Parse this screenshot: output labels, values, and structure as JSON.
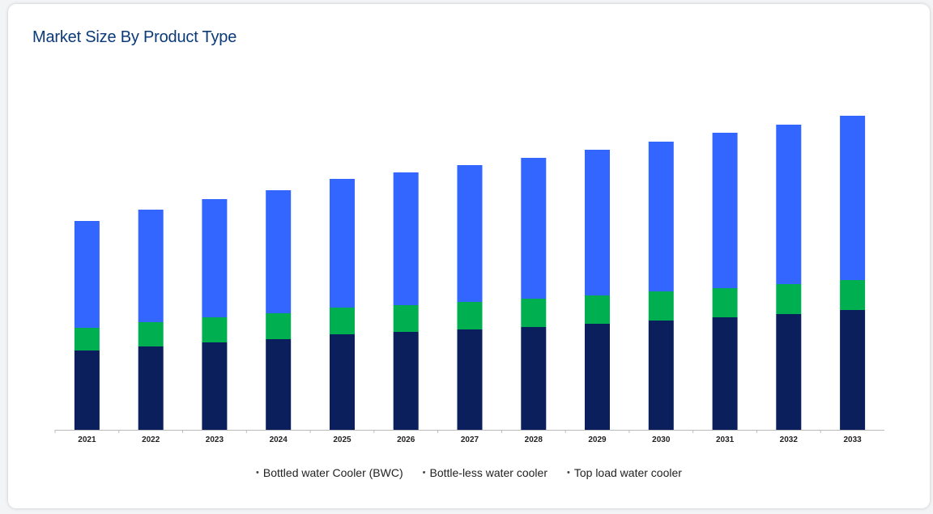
{
  "title": "Market Size By Product Type",
  "chart_data": {
    "type": "bar",
    "stacked": true,
    "categories": [
      "2021",
      "2022",
      "2023",
      "2024",
      "2025",
      "2026",
      "2027",
      "2028",
      "2029",
      "2030",
      "2031",
      "2032",
      "2033"
    ],
    "series": [
      {
        "name": "Bottled water Cooler (BWC)",
        "color": "#3366ff",
        "values": [
          132,
          139,
          146,
          152,
          159,
          164,
          169,
          174,
          180,
          185,
          192,
          197,
          203
        ]
      },
      {
        "name": "Bottle-less water cooler",
        "color": "#00b050",
        "values": [
          28,
          30,
          31,
          32,
          33,
          33,
          34,
          35,
          35,
          36,
          36,
          37,
          37
        ]
      },
      {
        "name": "Top load water cooler",
        "color": "#0a1f5c",
        "values": [
          98,
          103,
          108,
          112,
          118,
          121,
          124,
          127,
          131,
          135,
          139,
          143,
          148
        ]
      }
    ],
    "ylim": [
      0,
      400
    ],
    "legend_position": "bottom",
    "grid": false
  }
}
